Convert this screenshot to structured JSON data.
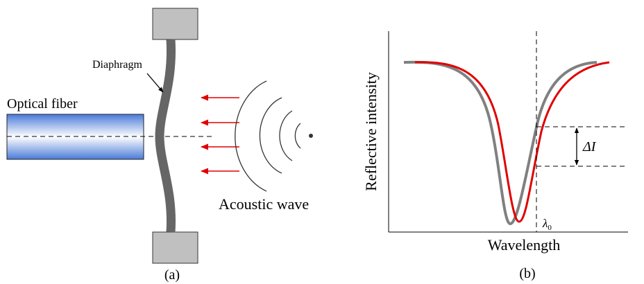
{
  "panel_a": {
    "fiber_label": "Optical fiber",
    "diaphragm_label": "Diaphragm",
    "wave_label": "Acoustic wave",
    "caption": "(a)"
  },
  "panel_b": {
    "y_label": "Reflective intensity",
    "x_label": "Wavelength",
    "delta_label": "ΔI",
    "lambda_symbol": "λ",
    "lambda_subscript": "0",
    "caption": "(b)"
  }
}
